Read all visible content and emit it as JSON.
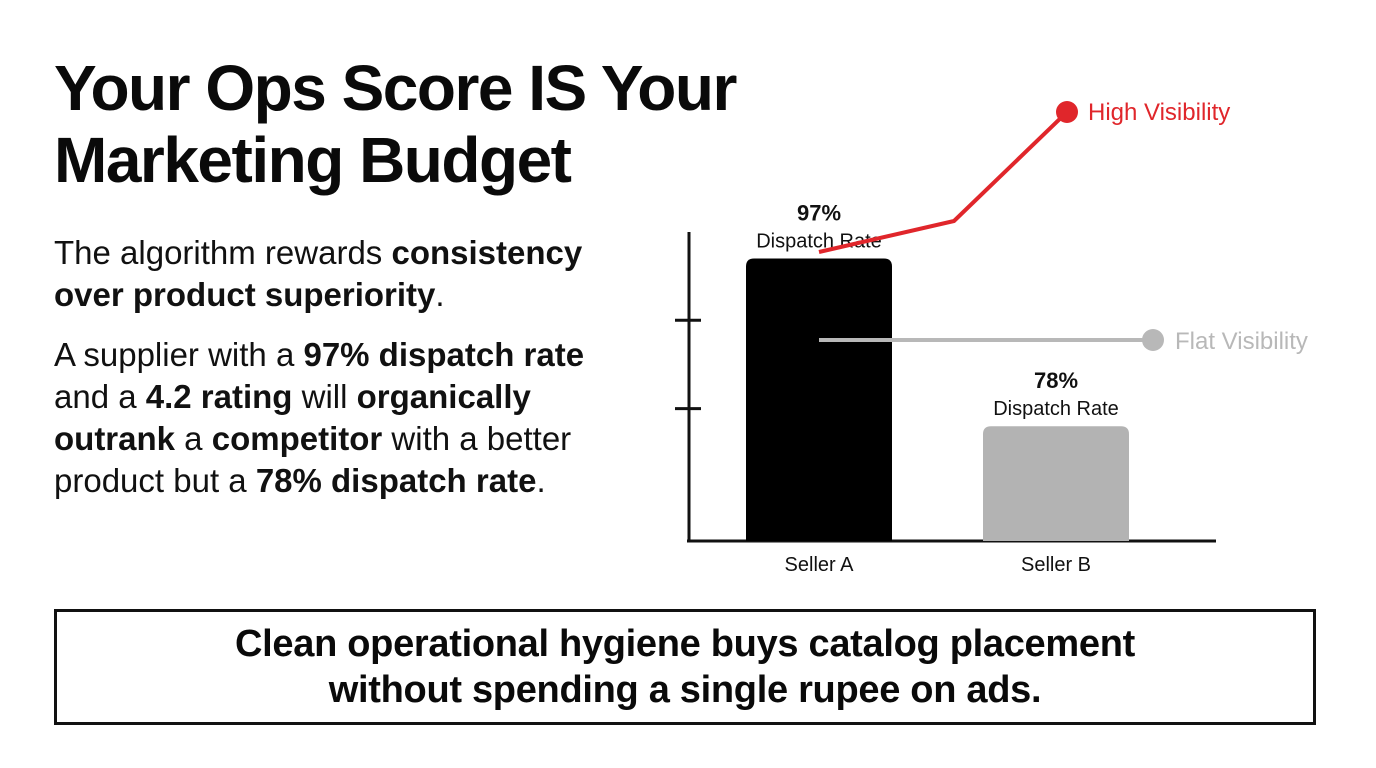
{
  "headline": {
    "line1": "Your Ops Score IS Your",
    "line2": "Marketing Budget"
  },
  "paragraph1": [
    {
      "text": "The algorithm rewards ",
      "bold": false
    },
    {
      "text": "consistency over product superiority",
      "bold": true
    },
    {
      "text": ".",
      "bold": false
    }
  ],
  "paragraph2": [
    {
      "text": "A supplier with a ",
      "bold": false
    },
    {
      "text": "97% dispatch rate",
      "bold": true
    },
    {
      "text": " and a ",
      "bold": false
    },
    {
      "text": "4.2 rating",
      "bold": true
    },
    {
      "text": " will ",
      "bold": false
    },
    {
      "text": "organically outrank",
      "bold": true
    },
    {
      "text": " a ",
      "bold": false
    },
    {
      "text": "competitor",
      "bold": true
    },
    {
      "text": " with a better product but a ",
      "bold": false
    },
    {
      "text": "78% dispatch rate",
      "bold": true
    },
    {
      "text": ".",
      "bold": false
    }
  ],
  "chart_data": {
    "type": "bar",
    "categories": [
      "Seller A",
      "Seller B"
    ],
    "values": [
      97,
      78
    ],
    "value_labels": [
      "97%",
      "78%"
    ],
    "value_sublabel": "Dispatch Rate",
    "bar_colors": [
      "#000000",
      "#b3b3b3"
    ],
    "ylim": [
      65,
      100
    ],
    "y_ticks": [
      90,
      80
    ],
    "grid": false,
    "title": "",
    "xlabel": "",
    "ylabel": "",
    "visibility_lines": [
      {
        "name": "High Visibility",
        "color": "#e0262b",
        "trend": "rising"
      },
      {
        "name": "Flat Visibility",
        "color": "#b8b8b8",
        "trend": "flat"
      }
    ]
  },
  "callout": {
    "line1": "Clean operational hygiene buys catalog placement",
    "line2": "without spending a single rupee on ads."
  }
}
